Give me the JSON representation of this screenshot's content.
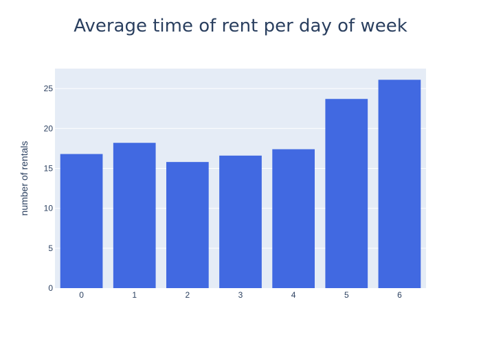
{
  "chart_data": {
    "type": "bar",
    "title": "Average time of rent per day of week",
    "xlabel": "",
    "ylabel": "number of rentals",
    "categories": [
      "0",
      "1",
      "2",
      "3",
      "4",
      "5",
      "6"
    ],
    "values": [
      16.8,
      18.2,
      15.8,
      16.6,
      17.4,
      23.7,
      26.1
    ],
    "ylim": [
      0,
      27.5
    ],
    "yticks": [
      0,
      5,
      10,
      15,
      20,
      25
    ],
    "grid": true,
    "colors": {
      "bar": "#4169e1",
      "plot_bg": "#e5ecf6",
      "grid": "#ffffff",
      "text": "#2a3f5f"
    }
  }
}
